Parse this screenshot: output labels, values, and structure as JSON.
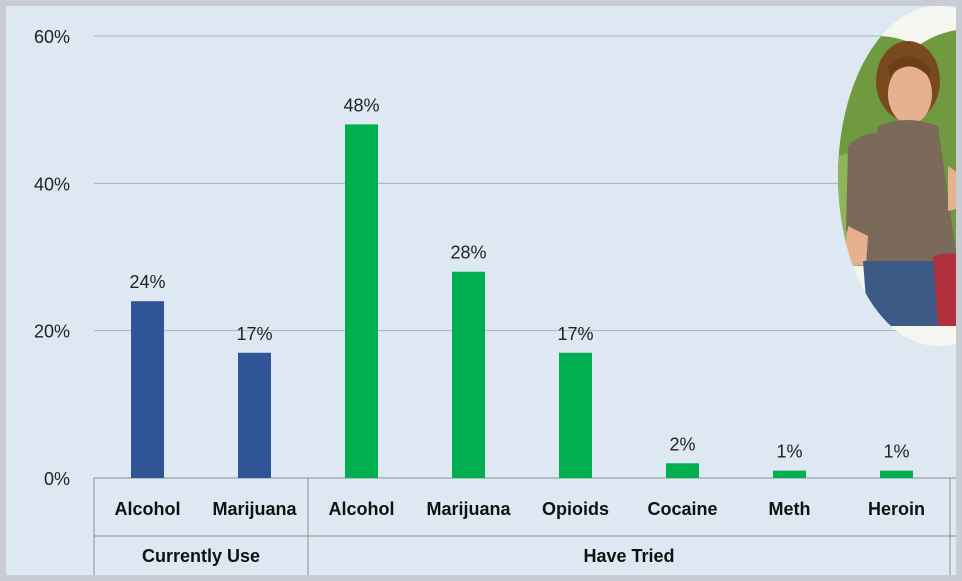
{
  "chart_data": {
    "type": "bar",
    "title": "",
    "xlabel": "",
    "ylabel": "",
    "ylim": [
      0,
      60
    ],
    "yticks": [
      "0%",
      "20%",
      "40%",
      "60%"
    ],
    "ytick_values": [
      0,
      20,
      40,
      60
    ],
    "grid": true,
    "groups": [
      {
        "label": "Currently Use",
        "color": "#2f5597",
        "categories": [
          "Alcohol",
          "Marijuana"
        ],
        "values": [
          24,
          17
        ],
        "data_labels": [
          "24%",
          "17%"
        ]
      },
      {
        "label": "Have Tried",
        "color": "#00b050",
        "categories": [
          "Alcohol",
          "Marijuana",
          "Opioids",
          "Cocaine",
          "Meth",
          "Heroin"
        ],
        "values": [
          48,
          28,
          17,
          2,
          1,
          1
        ],
        "data_labels": [
          "48%",
          "28%",
          "17%",
          "2%",
          "1%",
          "1%"
        ]
      }
    ]
  },
  "photo": {
    "icon": "teen-boy-photo",
    "colors": {
      "sky": "#f4f6ef",
      "foliage": "#6f9a3f",
      "shirt": "#7b6a5a",
      "hair": "#7a4a1e",
      "jeans": "#3d5a86",
      "skin": "#e7b08f"
    }
  }
}
